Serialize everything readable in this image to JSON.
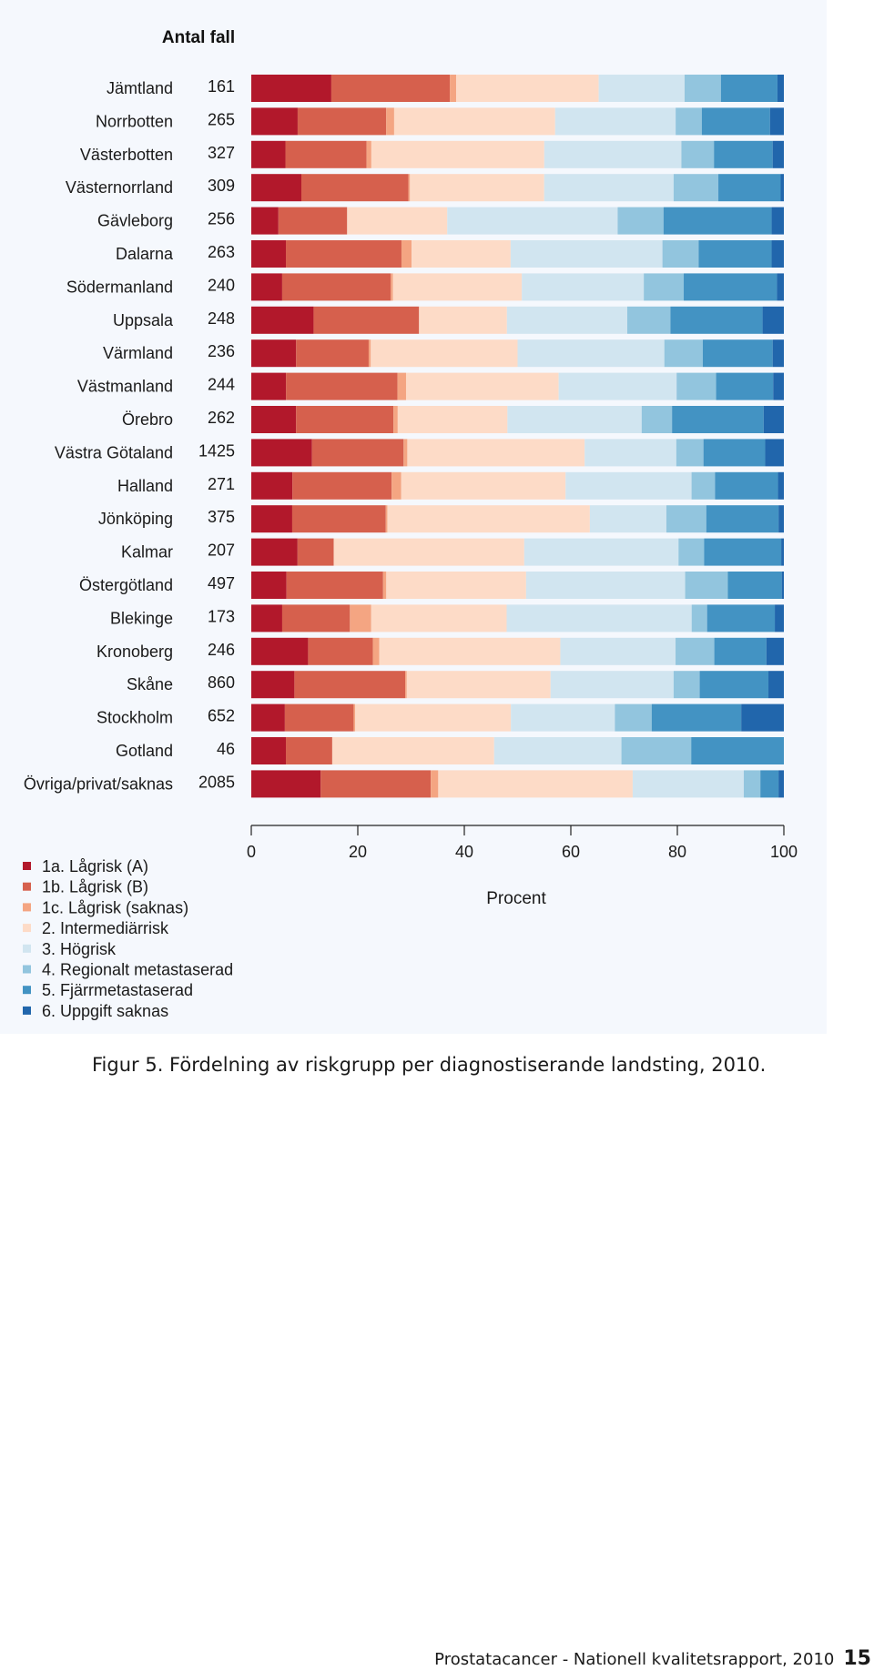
{
  "figure": {
    "caption": "Figur 5. Fördelning av riskgrupp per diagnostiserande landsting, 2010.",
    "footer_text": "Prostatacancer - Nationell kvalitetsrapport, 2010",
    "page_number": "15"
  },
  "chart_data": {
    "type": "bar",
    "orientation": "horizontal",
    "stacked": true,
    "count_header": "Antal fall",
    "xlabel": "Procent",
    "ylabel": "",
    "xlim": [
      0,
      100
    ],
    "xticks": [
      0,
      20,
      40,
      60,
      80,
      100
    ],
    "grid": false,
    "legend_position": "bottom-left",
    "categories": [
      "Jämtland",
      "Norrbotten",
      "Västerbotten",
      "Västernorrland",
      "Gävleborg",
      "Dalarna",
      "Södermanland",
      "Uppsala",
      "Värmland",
      "Västmanland",
      "Örebro",
      "Västra Götaland",
      "Halland",
      "Jönköping",
      "Kalmar",
      "Östergötland",
      "Blekinge",
      "Kronoberg",
      "Skåne",
      "Stockholm",
      "Gotland",
      "Övriga/privat/saknas"
    ],
    "counts": [
      "161",
      "265",
      "327",
      "309",
      "256",
      "263",
      "240",
      "248",
      "236",
      "244",
      "262",
      "1425",
      "271",
      "375",
      "207",
      "497",
      "173",
      "246",
      "860",
      "652",
      "46",
      "2085"
    ],
    "series": [
      {
        "name": "1a. Lågrisk (A)",
        "color": "#b2182b",
        "values": [
          15.0,
          8.7,
          6.4,
          9.4,
          5.1,
          6.5,
          5.8,
          11.7,
          8.4,
          6.5,
          8.4,
          11.4,
          7.7,
          7.7,
          8.7,
          6.6,
          5.8,
          10.7,
          8.1,
          6.3,
          6.5,
          13.0
        ]
      },
      {
        "name": "1b. Lågrisk (B)",
        "color": "#d6604d",
        "values": [
          22.2,
          16.6,
          15.2,
          20.1,
          12.9,
          21.7,
          20.4,
          19.8,
          13.6,
          20.9,
          18.3,
          17.2,
          18.6,
          17.6,
          6.8,
          18.1,
          12.7,
          12.2,
          20.8,
          12.9,
          8.7,
          20.6
        ]
      },
      {
        "name": "1c. Lågrisk (saknas)",
        "color": "#f4a582",
        "values": [
          1.2,
          1.5,
          0.9,
          0.3,
          0.0,
          1.9,
          0.4,
          0.0,
          0.4,
          1.6,
          0.8,
          0.7,
          1.8,
          0.3,
          0.0,
          0.6,
          4.0,
          1.2,
          0.3,
          0.3,
          0.0,
          1.4
        ]
      },
      {
        "name": "2. Intermediärrisk",
        "color": "#fddbc7",
        "values": [
          26.7,
          30.2,
          32.4,
          25.2,
          18.8,
          18.6,
          24.2,
          16.5,
          27.5,
          28.6,
          20.6,
          33.3,
          30.8,
          38.1,
          35.8,
          26.2,
          25.4,
          34.1,
          27.0,
          29.2,
          30.4,
          36.4
        ]
      },
      {
        "name": "3. Högrisk",
        "color": "#d1e5f0",
        "values": [
          16.1,
          22.6,
          25.7,
          24.3,
          32.0,
          28.5,
          22.9,
          22.6,
          27.5,
          22.1,
          25.2,
          17.2,
          23.6,
          14.4,
          29.0,
          29.8,
          34.7,
          21.7,
          23.1,
          19.5,
          23.9,
          20.8
        ]
      },
      {
        "name": "4. Regionalt metastaserad",
        "color": "#92c5de",
        "values": [
          6.8,
          4.9,
          6.1,
          8.4,
          8.6,
          6.8,
          7.5,
          8.1,
          7.2,
          7.4,
          5.7,
          5.1,
          4.4,
          7.5,
          4.8,
          8.0,
          2.9,
          7.3,
          4.9,
          6.9,
          13.1,
          3.1
        ]
      },
      {
        "name": "5. Fjärrmetastaserad",
        "color": "#4393c3",
        "values": [
          10.6,
          12.8,
          11.0,
          11.7,
          20.3,
          13.7,
          17.5,
          17.3,
          13.1,
          10.7,
          17.2,
          11.6,
          11.8,
          13.6,
          14.5,
          10.1,
          12.7,
          9.8,
          12.9,
          16.8,
          17.4,
          3.4
        ]
      },
      {
        "name": "6. Uppgift saknas",
        "color": "#2166ac",
        "values": [
          1.2,
          2.6,
          2.1,
          0.6,
          2.3,
          2.3,
          1.3,
          4.0,
          2.1,
          2.0,
          3.8,
          3.5,
          1.1,
          1.0,
          0.5,
          0.4,
          1.7,
          3.3,
          2.9,
          8.0,
          0.0,
          1.0
        ]
      }
    ]
  }
}
